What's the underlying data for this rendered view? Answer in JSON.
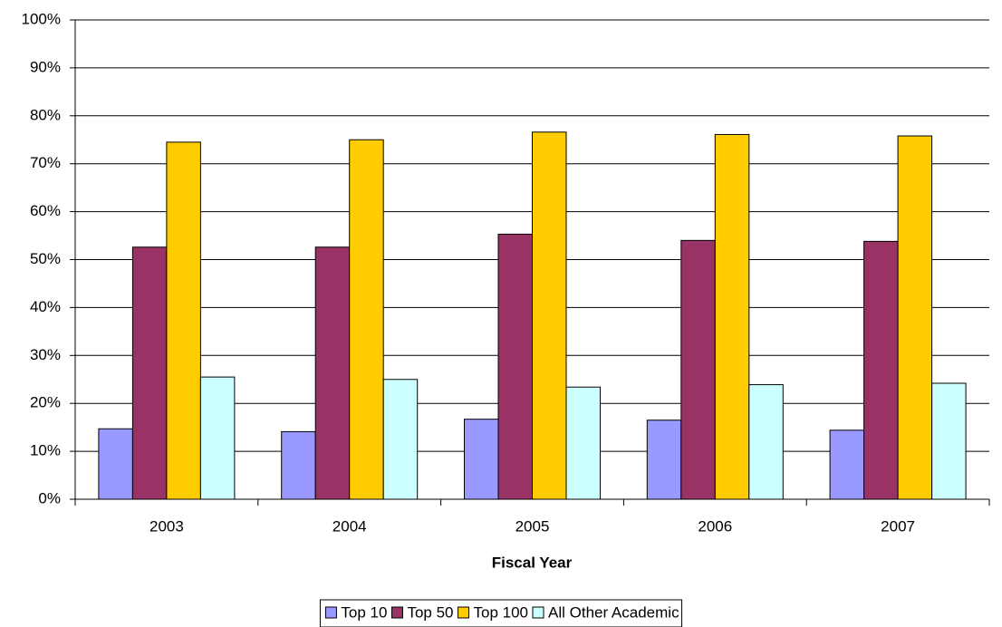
{
  "chart_data": {
    "type": "bar",
    "x_label": "Fiscal Year",
    "categories": [
      "2003",
      "2004",
      "2005",
      "2006",
      "2007"
    ],
    "series": [
      {
        "name": "Top 10",
        "color": "#9999ff",
        "values": [
          14.7,
          14.1,
          16.7,
          16.5,
          14.4
        ]
      },
      {
        "name": "Top 50",
        "color": "#993366",
        "values": [
          52.6,
          52.6,
          55.3,
          54.0,
          53.8
        ]
      },
      {
        "name": "Top 100",
        "color": "#ffcc00",
        "values": [
          74.5,
          75.0,
          76.6,
          76.1,
          75.8
        ]
      },
      {
        "name": "All Other Academic",
        "color": "#ccffff",
        "values": [
          25.5,
          25.0,
          23.4,
          23.9,
          24.2
        ]
      }
    ],
    "ylim": [
      0,
      100
    ],
    "yticks": [
      {
        "value": 0,
        "label": "0%"
      },
      {
        "value": 10,
        "label": "10%"
      },
      {
        "value": 20,
        "label": "20%"
      },
      {
        "value": 30,
        "label": "30%"
      },
      {
        "value": 40,
        "label": "40%"
      },
      {
        "value": 50,
        "label": "50%"
      },
      {
        "value": 60,
        "label": "60%"
      },
      {
        "value": 70,
        "label": "70%"
      },
      {
        "value": 80,
        "label": "80%"
      },
      {
        "value": 90,
        "label": "90%"
      },
      {
        "value": 100,
        "label": "100%"
      }
    ],
    "grid": true,
    "legend": "bottom"
  }
}
